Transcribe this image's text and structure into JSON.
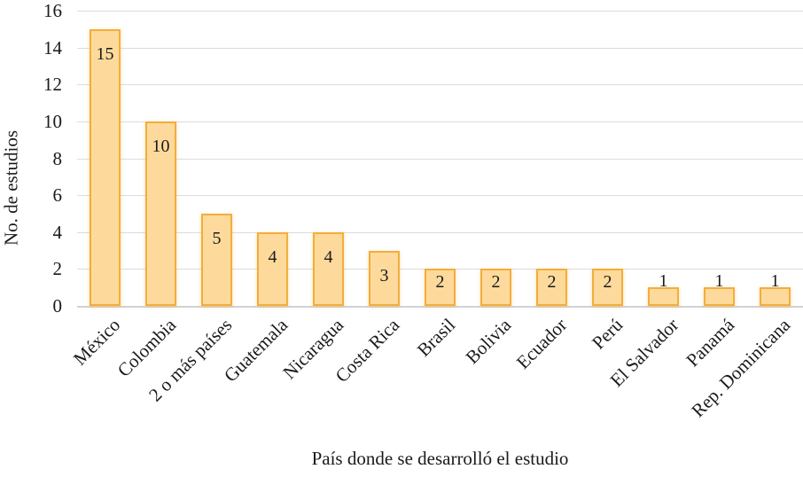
{
  "chart_data": {
    "type": "bar",
    "title": "",
    "xlabel": "País donde se desarrolló el estudio",
    "ylabel": "No. de estudios",
    "categories": [
      "México",
      "Colombia",
      "2 o más países",
      "Guatemala",
      "Nicaragua",
      "Costa Rica",
      "Brasil",
      "Bolivia",
      "Ecuador",
      "Perú",
      "El Salvador",
      "Panamá",
      "Rep. Dominicana"
    ],
    "values": [
      15,
      10,
      5,
      4,
      4,
      3,
      2,
      2,
      2,
      2,
      1,
      1,
      1
    ],
    "data_labels": [
      15,
      10,
      5,
      4,
      4,
      3,
      2,
      2,
      2,
      2,
      1,
      1,
      1
    ],
    "ylim": [
      0,
      16
    ],
    "yticks": [
      0,
      2,
      4,
      6,
      8,
      10,
      12,
      14,
      16
    ],
    "grid": "horizontal",
    "legend": "none",
    "x_tick_rotation_deg": -45,
    "colors": {
      "bar_fill": "#fdda9b",
      "bar_border": "#f2ae3d",
      "gridline": "#dcdcdc",
      "axis_line": "#d2d2d2",
      "text": "#1a1a1a",
      "background": "#ffffff"
    }
  }
}
